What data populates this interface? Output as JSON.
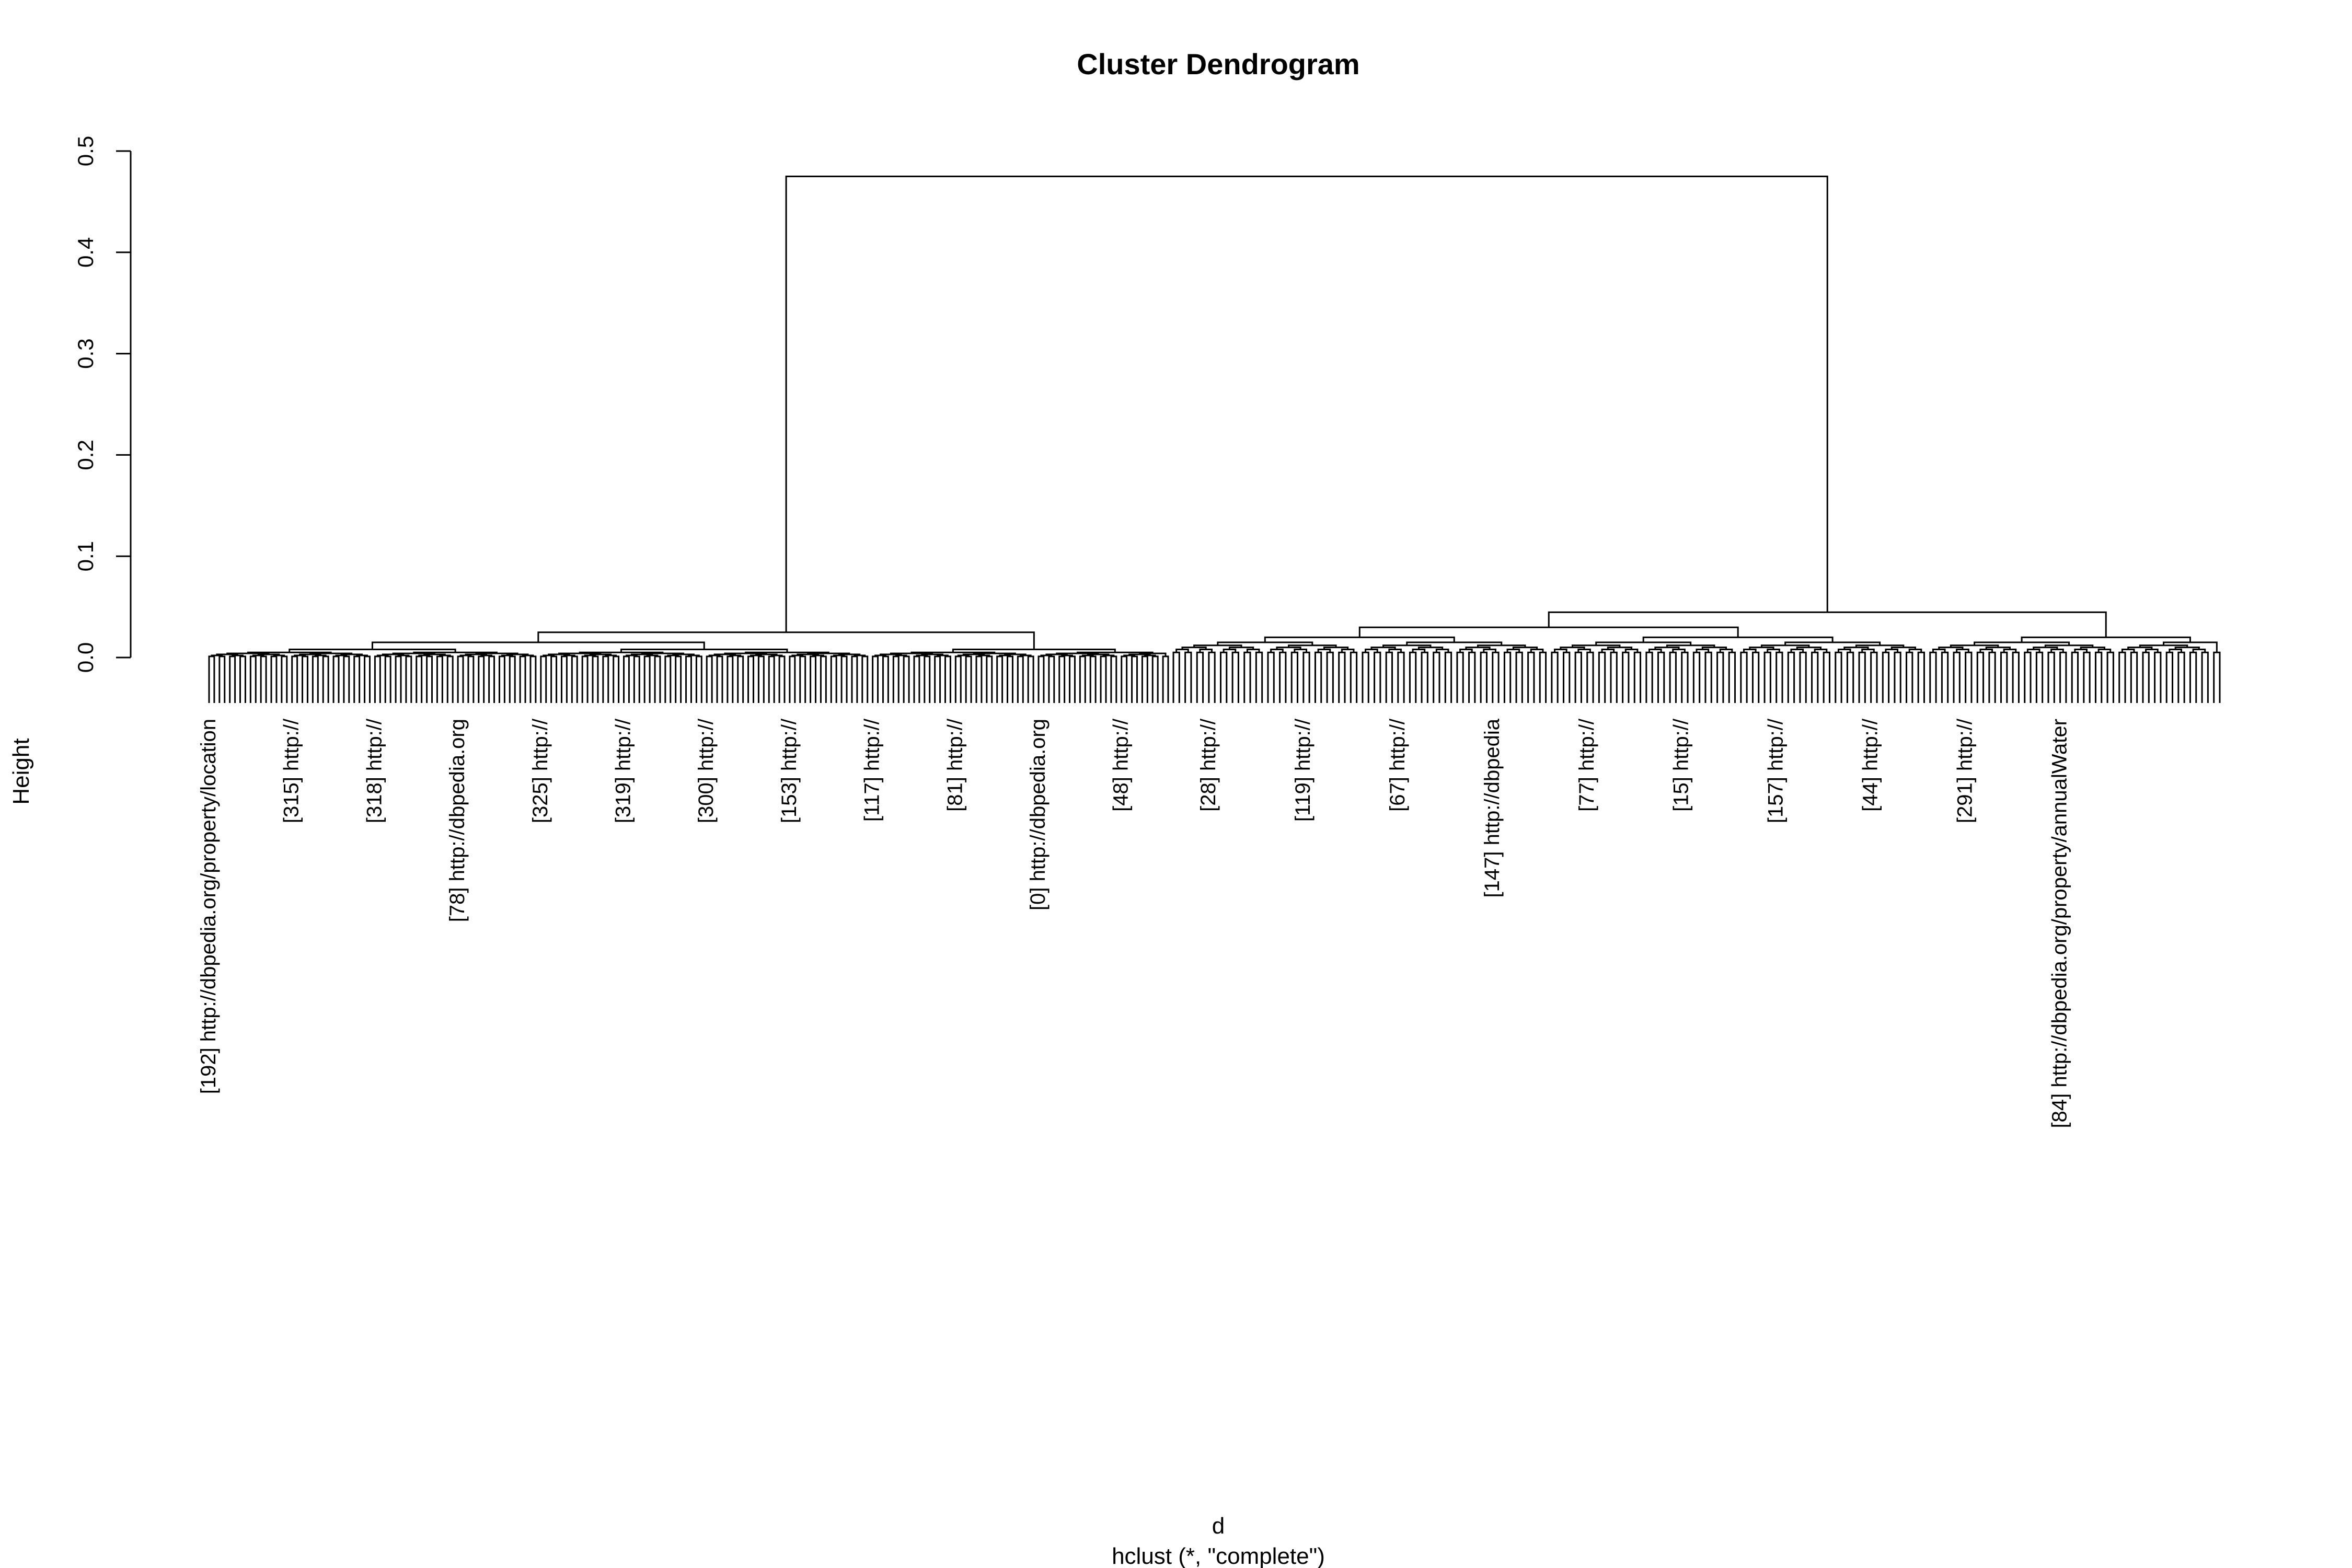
{
  "chart_data": {
    "type": "dendrogram",
    "title": "Cluster Dendrogram",
    "ylabel": "Height",
    "xlabel": "d",
    "sub": "hclust (*, \"complete\")",
    "ylim": [
      0,
      0.5
    ],
    "yticks": [
      "0.0",
      "0.1",
      "0.2",
      "0.3",
      "0.4",
      "0.5"
    ],
    "ytick_values": [
      0,
      0.1,
      0.2,
      0.3,
      0.4,
      0.5
    ],
    "root_height": 0.475,
    "left_cluster": {
      "leaf_count": 186,
      "sub_merge_heights": [
        0.025,
        0.015,
        0.008,
        0.005,
        0.004,
        0.003,
        0.002,
        0.001
      ]
    },
    "right_cluster": {
      "leaf_count": 178,
      "sub_merge_heights": [
        0.058,
        0.045,
        0.03,
        0.02,
        0.015,
        0.012,
        0.01,
        0.008,
        0.005
      ]
    },
    "leaf_labels_readable": [
      "[192] http://dbpedia.org/property/location",
      "[315] http://",
      "[318] http://",
      "[78] http://dbpedia.org",
      "[325] http://",
      "[319] http://",
      "[300] http://",
      "[153] http://",
      "[117] http://",
      "[81] http://",
      "[0] http://dbpedia.org",
      "[48] http://",
      "[28] http://",
      "[119] http://",
      "[67] http://",
      "[147] http://dbpedia",
      "[77] http://",
      "[15] http://",
      "[157] http://",
      "[44] http://",
      "[291] http://",
      "[84] http://dbpedia.org/property/annualWater"
    ]
  }
}
